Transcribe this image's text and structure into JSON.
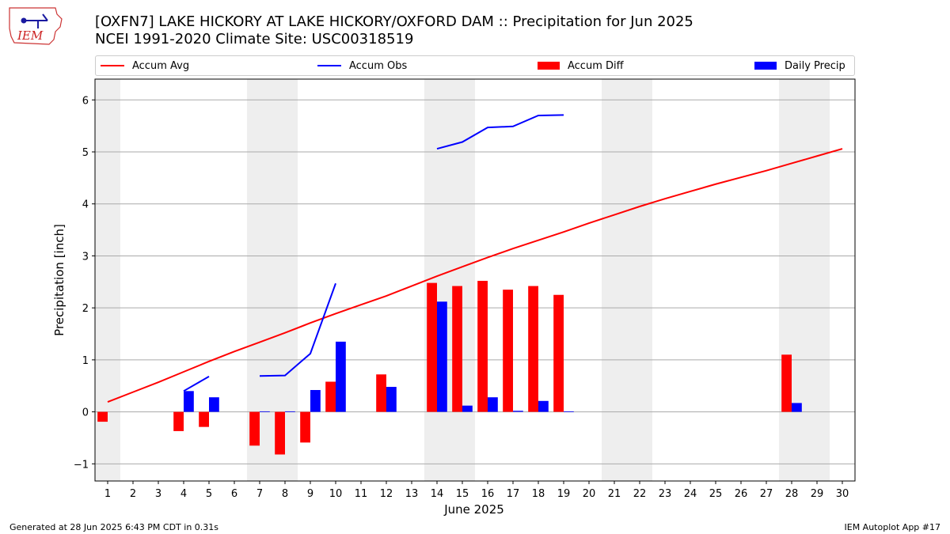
{
  "header": {
    "title_line1": "[OXFN7] LAKE HICKORY  AT LAKE HICKORY/OXFORD DAM :: Precipitation for Jun 2025",
    "title_line2": "NCEI 1991-2020 Climate Site: USC00318519",
    "logo_text": "IEM"
  },
  "legend": {
    "accum_avg": "Accum Avg",
    "accum_obs": "Accum Obs",
    "accum_diff": "Accum Diff",
    "daily_precip": "Daily Precip"
  },
  "footer": {
    "generated": "Generated at 28 Jun 2025 6:43 PM CDT in 0.31s",
    "app": "IEM Autoplot App #17"
  },
  "colors": {
    "accum_avg": "#ff0000",
    "accum_obs": "#0000ff",
    "accum_diff": "#ff0000",
    "daily_precip": "#0000ff",
    "weekend_shade": "#eeeeee",
    "grid": "#aaaaaa"
  },
  "chart_data": {
    "type": "bar",
    "xlabel": "June 2025",
    "ylabel": "Precipitation [inch]",
    "xlim": [
      0.5,
      30.5
    ],
    "ylim": [
      -1.33,
      6.4
    ],
    "x_ticks": [
      1,
      2,
      3,
      4,
      5,
      6,
      7,
      8,
      9,
      10,
      11,
      12,
      13,
      14,
      15,
      16,
      17,
      18,
      19,
      20,
      21,
      22,
      23,
      24,
      25,
      26,
      27,
      28,
      29,
      30
    ],
    "y_ticks": [
      -1,
      0,
      1,
      2,
      3,
      4,
      5,
      6
    ],
    "grid": "horizontal",
    "legend_position": "top",
    "weekend_spans": [
      [
        0.5,
        1.5
      ],
      [
        6.5,
        8.5
      ],
      [
        13.5,
        15.5
      ],
      [
        20.5,
        22.5
      ],
      [
        27.5,
        29.5
      ]
    ],
    "series": [
      {
        "name": "Accum Avg",
        "type": "line",
        "x": [
          1,
          2,
          3,
          4,
          5,
          6,
          7,
          8,
          9,
          10,
          11,
          12,
          13,
          14,
          15,
          16,
          17,
          18,
          19,
          20,
          21,
          22,
          23,
          24,
          25,
          26,
          27,
          28,
          29,
          30
        ],
        "values": [
          0.19,
          0.38,
          0.57,
          0.77,
          0.97,
          1.16,
          1.34,
          1.52,
          1.71,
          1.89,
          2.06,
          2.23,
          2.42,
          2.61,
          2.79,
          2.97,
          3.14,
          3.3,
          3.46,
          3.63,
          3.79,
          3.95,
          4.1,
          4.24,
          4.38,
          4.51,
          4.64,
          4.78,
          4.92,
          5.06
        ]
      },
      {
        "name": "Accum Obs",
        "type": "line",
        "segments": [
          {
            "x": [
              4,
              5
            ],
            "values": [
              0.4,
              0.68
            ]
          },
          {
            "x": [
              7,
              8,
              9,
              10
            ],
            "values": [
              0.69,
              0.7,
              1.12,
              2.47
            ]
          },
          {
            "x": [
              14,
              15,
              16,
              17,
              18,
              19
            ],
            "values": [
              5.06,
              5.19,
              5.47,
              5.49,
              5.7,
              5.71
            ]
          }
        ]
      },
      {
        "name": "Accum Diff",
        "type": "bar",
        "x": [
          1,
          4,
          5,
          7,
          8,
          9,
          10,
          12,
          14,
          15,
          16,
          17,
          18,
          19,
          28
        ],
        "values": [
          -0.19,
          -0.37,
          -0.29,
          -0.65,
          -0.82,
          -0.59,
          0.58,
          0.72,
          2.48,
          2.42,
          2.52,
          2.35,
          2.42,
          2.25,
          1.1
        ]
      },
      {
        "name": "Daily Precip",
        "type": "bar",
        "x": [
          4,
          5,
          7,
          8,
          9,
          10,
          12,
          14,
          15,
          16,
          17,
          18,
          19,
          28
        ],
        "values": [
          0.4,
          0.28,
          0.01,
          0.01,
          0.42,
          1.35,
          0.48,
          2.12,
          0.12,
          0.28,
          0.02,
          0.21,
          0.01,
          0.17
        ]
      }
    ]
  }
}
